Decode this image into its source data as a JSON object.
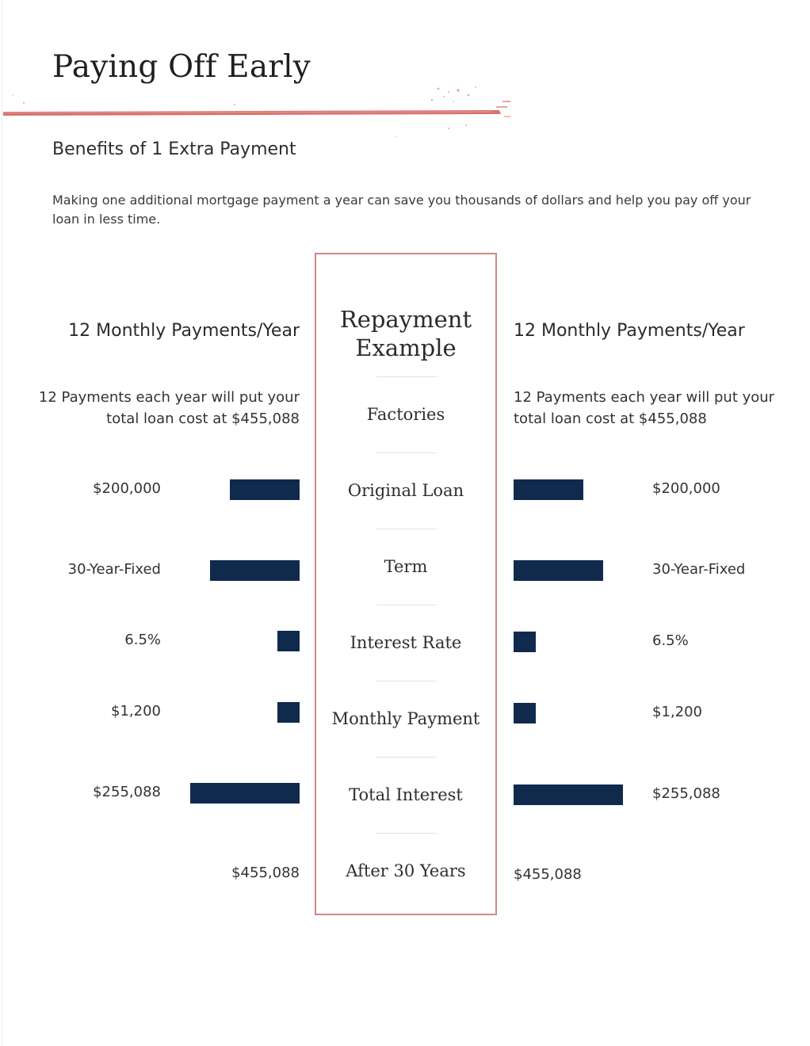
{
  "page": {
    "title": "Paying Off Early",
    "subtitle": "Benefits of 1 Extra Payment",
    "intro": "Making one additional mortgage payment a year can save you thousands of dollars and help you pay off your loan in less time.",
    "accent_color": "#d9736f",
    "bar_color": "#0f2a4d"
  },
  "left": {
    "heading": "12 Monthly Payments/Year",
    "description": "12 Payments each year will put your total loan cost at $455,088",
    "rows": [
      {
        "value": "$200,000",
        "bar_fraction": 0.64
      },
      {
        "value": "30-Year-Fixed",
        "bar_fraction": 0.82
      },
      {
        "value": "6.5%",
        "bar_fraction": 0.2
      },
      {
        "value": "$1,200",
        "bar_fraction": 0.2
      },
      {
        "value": "$255,088",
        "bar_fraction": 1.0
      }
    ],
    "total": "$455,088"
  },
  "right": {
    "heading": "12 Monthly Payments/Year",
    "description": "12 Payments each year will put your total loan cost at $455,088",
    "rows": [
      {
        "value": "$200,000",
        "bar_fraction": 0.64
      },
      {
        "value": "30-Year-Fixed",
        "bar_fraction": 0.82
      },
      {
        "value": "6.5%",
        "bar_fraction": 0.2
      },
      {
        "value": "$1,200",
        "bar_fraction": 0.2
      },
      {
        "value": "$255,088",
        "bar_fraction": 1.0
      }
    ],
    "total": "$455,088"
  },
  "center": {
    "heading": "Repayment Example",
    "labels": [
      "Factories",
      "Original Loan",
      "Term",
      "Interest Rate",
      "Monthly Payment",
      "Total Interest",
      "After 30 Years"
    ]
  }
}
